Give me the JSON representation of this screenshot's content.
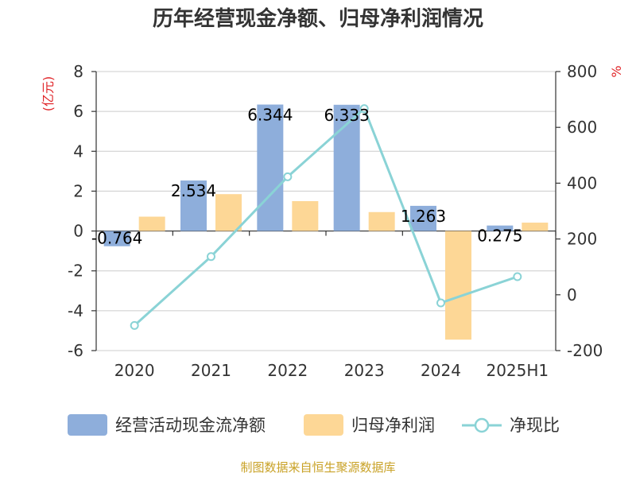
{
  "chart_data": {
    "type": "bar",
    "title": "历年经营现金净额、归母净利润情况",
    "ylabel_left": "(亿元)",
    "ylabel_right": "%",
    "categories": [
      "2020",
      "2021",
      "2022",
      "2023",
      "2024",
      "2025H1"
    ],
    "ylim_left": [
      -6,
      8
    ],
    "yticks_left": [
      -6,
      -4,
      -2,
      0,
      2,
      4,
      6,
      8
    ],
    "ylim_right": [
      -200,
      800
    ],
    "yticks_right": [
      -200,
      0,
      200,
      400,
      600,
      800
    ],
    "grid": true,
    "legend_position": "bottom",
    "series": [
      {
        "name": "经营活动现金流净额",
        "type": "bar",
        "axis": "left",
        "color": "#8eaedb",
        "values": [
          -0.764,
          2.534,
          6.344,
          6.333,
          1.263,
          0.275
        ],
        "labels": [
          "-0.764",
          "2.534",
          "6.344",
          "6.333",
          "1.263",
          "0.275"
        ]
      },
      {
        "name": "归母净利润",
        "type": "bar",
        "axis": "left",
        "color": "#fdd796",
        "values": [
          0.72,
          1.85,
          1.5,
          0.95,
          -5.45,
          0.42
        ]
      },
      {
        "name": "净现比",
        "type": "line",
        "axis": "right",
        "color": "#8ad3d6",
        "values": [
          -110,
          137,
          423,
          667,
          -29,
          65
        ]
      }
    ]
  },
  "footer": {
    "source": "制图数据来自恒生聚源数据库"
  }
}
